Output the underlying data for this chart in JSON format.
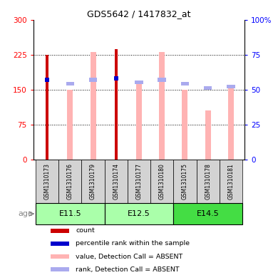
{
  "title": "GDS5642 / 1417832_at",
  "samples": [
    "GSM1310173",
    "GSM1310176",
    "GSM1310179",
    "GSM1310174",
    "GSM1310177",
    "GSM1310180",
    "GSM1310175",
    "GSM1310178",
    "GSM1310181"
  ],
  "count_values": [
    225,
    0,
    0,
    237,
    0,
    0,
    0,
    0,
    0
  ],
  "percentile_rank": [
    57,
    0,
    0,
    58,
    0,
    0,
    0,
    0,
    0
  ],
  "absent_value": [
    0,
    150,
    230,
    0,
    168,
    230,
    150,
    105,
    152
  ],
  "absent_rank": [
    0,
    54,
    57,
    0,
    55,
    57,
    54,
    51,
    52
  ],
  "age_groups": [
    {
      "label": "E11.5",
      "start": 0,
      "end": 3
    },
    {
      "label": "E12.5",
      "start": 3,
      "end": 6
    },
    {
      "label": "E14.5",
      "start": 6,
      "end": 9
    }
  ],
  "ylim_left": [
    0,
    300
  ],
  "ylim_right": [
    0,
    100
  ],
  "yticks_left": [
    0,
    75,
    150,
    225,
    300
  ],
  "yticks_right": [
    0,
    25,
    50,
    75,
    100
  ],
  "ytick_labels_left": [
    "0",
    "75",
    "150",
    "225",
    "300"
  ],
  "ytick_labels_right": [
    "0",
    "25",
    "50",
    "75",
    "100%"
  ],
  "color_count": "#cc0000",
  "color_percentile": "#0000cc",
  "color_absent_value": "#ffb3b3",
  "color_absent_rank": "#aaaaee",
  "color_age_e115": "#aaffaa",
  "color_age_e125": "#aaffaa",
  "color_age_e145": "#44dd44",
  "color_sample_bg": "#d3d3d3",
  "legend_items": [
    {
      "color": "#cc0000",
      "label": "count"
    },
    {
      "color": "#0000cc",
      "label": "percentile rank within the sample"
    },
    {
      "color": "#ffb3b3",
      "label": "value, Detection Call = ABSENT"
    },
    {
      "color": "#aaaaee",
      "label": "rank, Detection Call = ABSENT"
    }
  ]
}
